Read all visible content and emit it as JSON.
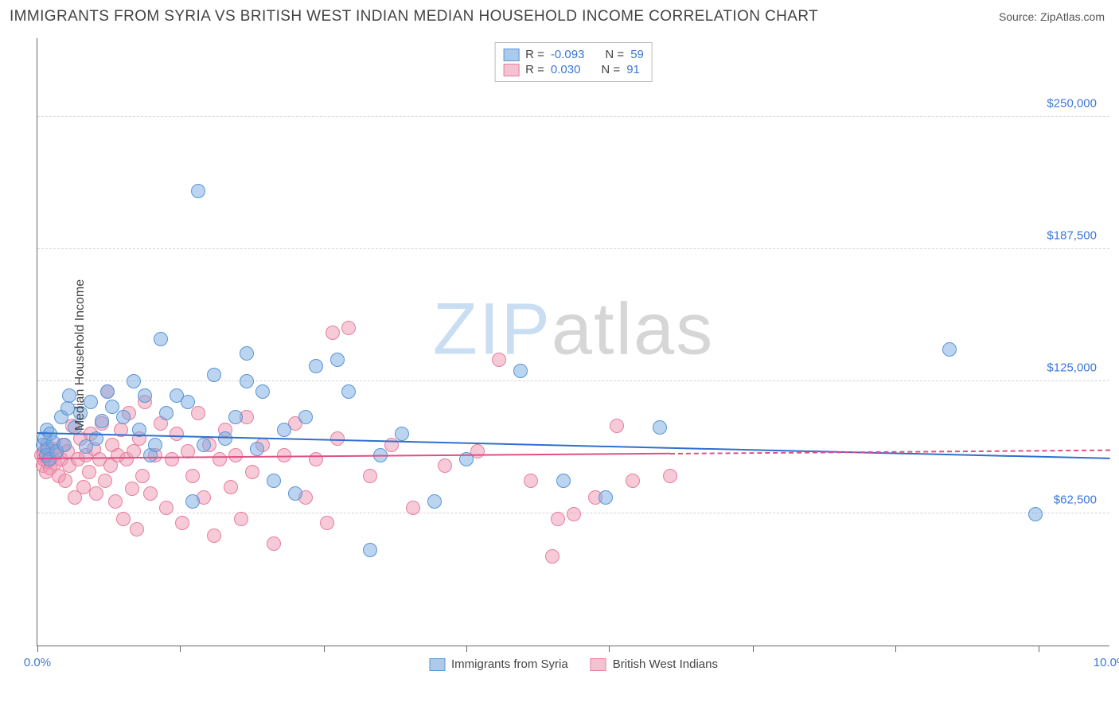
{
  "title": "IMMIGRANTS FROM SYRIA VS BRITISH WEST INDIAN MEDIAN HOUSEHOLD INCOME CORRELATION CHART",
  "source_label": "Source: ZipAtlas.com",
  "ylabel": "Median Household Income",
  "watermark": {
    "part1": "ZIP",
    "part2": "atlas"
  },
  "chart": {
    "type": "scatter",
    "background_color": "#ffffff",
    "grid_color": "#d5d5d5",
    "axis_color": "#666666",
    "value_text_color": "#3b78d8",
    "xlim": [
      0.0,
      10.0
    ],
    "ylim": [
      0,
      287500
    ],
    "x_tick_positions": [
      0.0,
      1.33,
      2.67,
      4.0,
      5.33,
      6.67,
      8.0,
      9.33
    ],
    "x_tick_labels": {
      "first": "0.0%",
      "last": "10.0%"
    },
    "y_gridlines": [
      62500,
      125000,
      187500,
      250000
    ],
    "y_tick_labels": [
      "$62,500",
      "$125,000",
      "$187,500",
      "$250,000"
    ],
    "marker_radius": 9,
    "series": [
      {
        "name": "Immigrants from Syria",
        "fill": "rgba(120,170,225,0.50)",
        "stroke": "#5a95d6",
        "swatch_fill": "#a9cbee",
        "swatch_border": "#5a95d6",
        "r_value": "-0.093",
        "n_value": "59",
        "trend": {
          "y_at_x0": 100000,
          "y_at_x10": 88000,
          "color": "#2f6fd0",
          "solid_until_x": 10.0
        },
        "points": [
          [
            0.05,
            95000
          ],
          [
            0.07,
            98000
          ],
          [
            0.08,
            90000
          ],
          [
            0.09,
            102000
          ],
          [
            0.1,
            93000
          ],
          [
            0.11,
            88000
          ],
          [
            0.12,
            100000
          ],
          [
            0.15,
            96000
          ],
          [
            0.18,
            92000
          ],
          [
            0.22,
            108000
          ],
          [
            0.25,
            95000
          ],
          [
            0.28,
            112000
          ],
          [
            0.3,
            118000
          ],
          [
            0.35,
            103000
          ],
          [
            0.4,
            110000
          ],
          [
            0.45,
            94000
          ],
          [
            0.5,
            115000
          ],
          [
            0.55,
            98000
          ],
          [
            0.6,
            106000
          ],
          [
            0.65,
            120000
          ],
          [
            0.7,
            113000
          ],
          [
            0.8,
            108000
          ],
          [
            0.9,
            125000
          ],
          [
            0.95,
            102000
          ],
          [
            1.0,
            118000
          ],
          [
            1.05,
            90000
          ],
          [
            1.1,
            95000
          ],
          [
            1.15,
            145000
          ],
          [
            1.2,
            110000
          ],
          [
            1.3,
            118000
          ],
          [
            1.4,
            115000
          ],
          [
            1.45,
            68000
          ],
          [
            1.5,
            215000
          ],
          [
            1.55,
            95000
          ],
          [
            1.65,
            128000
          ],
          [
            1.75,
            98000
          ],
          [
            1.85,
            108000
          ],
          [
            1.95,
            138000
          ],
          [
            2.05,
            93000
          ],
          [
            2.1,
            120000
          ],
          [
            2.2,
            78000
          ],
          [
            2.3,
            102000
          ],
          [
            2.5,
            108000
          ],
          [
            2.6,
            132000
          ],
          [
            2.8,
            135000
          ],
          [
            2.9,
            120000
          ],
          [
            3.1,
            45000
          ],
          [
            3.2,
            90000
          ],
          [
            3.4,
            100000
          ],
          [
            3.7,
            68000
          ],
          [
            4.0,
            88000
          ],
          [
            4.5,
            130000
          ],
          [
            4.9,
            78000
          ],
          [
            5.3,
            70000
          ],
          [
            5.8,
            103000
          ],
          [
            8.5,
            140000
          ],
          [
            9.3,
            62000
          ],
          [
            2.4,
            72000
          ],
          [
            1.95,
            125000
          ]
        ]
      },
      {
        "name": "British West Indians",
        "fill": "rgba(240,150,175,0.50)",
        "stroke": "#e87ea0",
        "swatch_fill": "#f6c1d1",
        "swatch_border": "#e87ea0",
        "r_value": "0.030",
        "n_value": "91",
        "trend": {
          "y_at_x0": 88000,
          "y_at_x10": 92000,
          "color": "#e05084",
          "solid_until_x": 5.9
        },
        "points": [
          [
            0.04,
            90000
          ],
          [
            0.05,
            85000
          ],
          [
            0.06,
            88000
          ],
          [
            0.07,
            92000
          ],
          [
            0.08,
            82000
          ],
          [
            0.09,
            95000
          ],
          [
            0.1,
            87000
          ],
          [
            0.11,
            90000
          ],
          [
            0.12,
            84000
          ],
          [
            0.13,
            89000
          ],
          [
            0.14,
            93000
          ],
          [
            0.16,
            86000
          ],
          [
            0.18,
            91000
          ],
          [
            0.2,
            80000
          ],
          [
            0.22,
            88000
          ],
          [
            0.24,
            95000
          ],
          [
            0.26,
            78000
          ],
          [
            0.28,
            92000
          ],
          [
            0.3,
            85000
          ],
          [
            0.33,
            104000
          ],
          [
            0.35,
            70000
          ],
          [
            0.38,
            88000
          ],
          [
            0.4,
            98000
          ],
          [
            0.43,
            75000
          ],
          [
            0.45,
            90000
          ],
          [
            0.48,
            82000
          ],
          [
            0.5,
            100000
          ],
          [
            0.53,
            93000
          ],
          [
            0.55,
            72000
          ],
          [
            0.58,
            88000
          ],
          [
            0.6,
            105000
          ],
          [
            0.63,
            78000
          ],
          [
            0.65,
            120000
          ],
          [
            0.68,
            85000
          ],
          [
            0.7,
            95000
          ],
          [
            0.73,
            68000
          ],
          [
            0.75,
            90000
          ],
          [
            0.78,
            102000
          ],
          [
            0.8,
            60000
          ],
          [
            0.83,
            88000
          ],
          [
            0.85,
            110000
          ],
          [
            0.88,
            74000
          ],
          [
            0.9,
            92000
          ],
          [
            0.93,
            55000
          ],
          [
            0.95,
            98000
          ],
          [
            0.98,
            80000
          ],
          [
            1.0,
            115000
          ],
          [
            1.05,
            72000
          ],
          [
            1.1,
            90000
          ],
          [
            1.15,
            105000
          ],
          [
            1.2,
            65000
          ],
          [
            1.25,
            88000
          ],
          [
            1.3,
            100000
          ],
          [
            1.35,
            58000
          ],
          [
            1.4,
            92000
          ],
          [
            1.45,
            80000
          ],
          [
            1.5,
            110000
          ],
          [
            1.55,
            70000
          ],
          [
            1.6,
            95000
          ],
          [
            1.65,
            52000
          ],
          [
            1.7,
            88000
          ],
          [
            1.75,
            102000
          ],
          [
            1.8,
            75000
          ],
          [
            1.85,
            90000
          ],
          [
            1.9,
            60000
          ],
          [
            1.95,
            108000
          ],
          [
            2.0,
            82000
          ],
          [
            2.1,
            95000
          ],
          [
            2.2,
            48000
          ],
          [
            2.3,
            90000
          ],
          [
            2.4,
            105000
          ],
          [
            2.5,
            70000
          ],
          [
            2.6,
            88000
          ],
          [
            2.7,
            58000
          ],
          [
            2.75,
            148000
          ],
          [
            2.8,
            98000
          ],
          [
            2.9,
            150000
          ],
          [
            3.1,
            80000
          ],
          [
            3.3,
            95000
          ],
          [
            3.5,
            65000
          ],
          [
            3.8,
            85000
          ],
          [
            4.1,
            92000
          ],
          [
            4.3,
            135000
          ],
          [
            4.6,
            78000
          ],
          [
            4.8,
            42000
          ],
          [
            4.85,
            60000
          ],
          [
            5.0,
            62000
          ],
          [
            5.2,
            70000
          ],
          [
            5.4,
            104000
          ],
          [
            5.55,
            78000
          ],
          [
            5.9,
            80000
          ]
        ]
      }
    ]
  },
  "legend_top": {
    "r_label": "R =",
    "n_label": "N ="
  },
  "legend_bottom_labels": [
    "Immigrants from Syria",
    "British West Indians"
  ]
}
